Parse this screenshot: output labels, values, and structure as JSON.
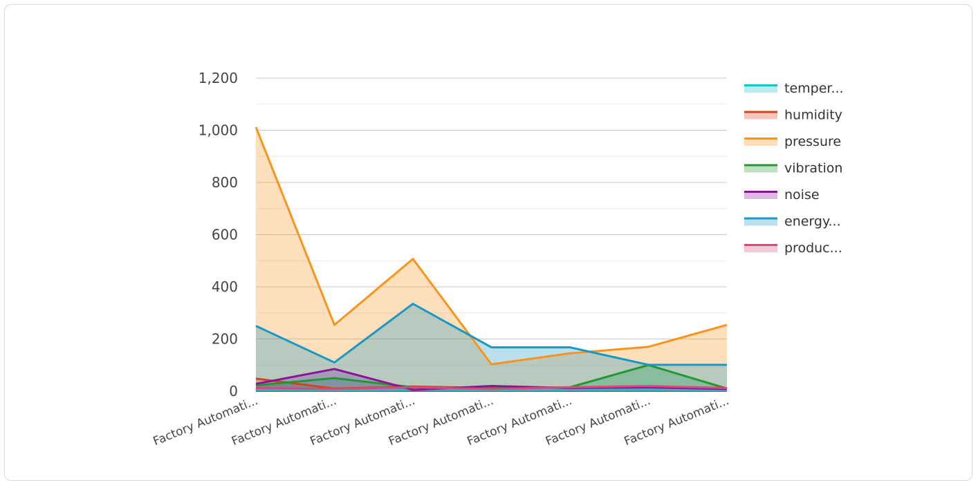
{
  "chart_data": {
    "type": "area",
    "categories": [
      "Factory Automati...",
      "Factory Automati...",
      "Factory Automati...",
      "Factory Automati...",
      "Factory Automati...",
      "Factory Automati...",
      "Factory Automati..."
    ],
    "yticks": [
      "0",
      "200",
      "400",
      "600",
      "800",
      "1,000",
      "1,200"
    ],
    "ylim": [
      0,
      1200
    ],
    "grid": true,
    "legend_position": "right",
    "series": [
      {
        "name": "temper...",
        "color": "#17c3c9",
        "values": [
          5,
          4,
          5,
          4,
          5,
          5,
          4
        ]
      },
      {
        "name": "humidity",
        "color": "#d2431f",
        "values": [
          48,
          10,
          18,
          12,
          15,
          18,
          10
        ]
      },
      {
        "name": "pressure",
        "color": "#f7941d",
        "values": [
          1012,
          254,
          507,
          103,
          145,
          170,
          254
        ]
      },
      {
        "name": "vibration",
        "color": "#1f9a2e",
        "values": [
          22,
          50,
          15,
          10,
          15,
          100,
          10
        ]
      },
      {
        "name": "noise",
        "color": "#8e1299",
        "values": [
          28,
          85,
          5,
          20,
          12,
          15,
          8
        ]
      },
      {
        "name": "energy...",
        "color": "#1a97c4",
        "values": [
          250,
          110,
          335,
          168,
          168,
          101,
          101
        ]
      },
      {
        "name": "produc...",
        "color": "#e0457b",
        "values": [
          12,
          8,
          15,
          8,
          15,
          20,
          12
        ]
      }
    ]
  }
}
